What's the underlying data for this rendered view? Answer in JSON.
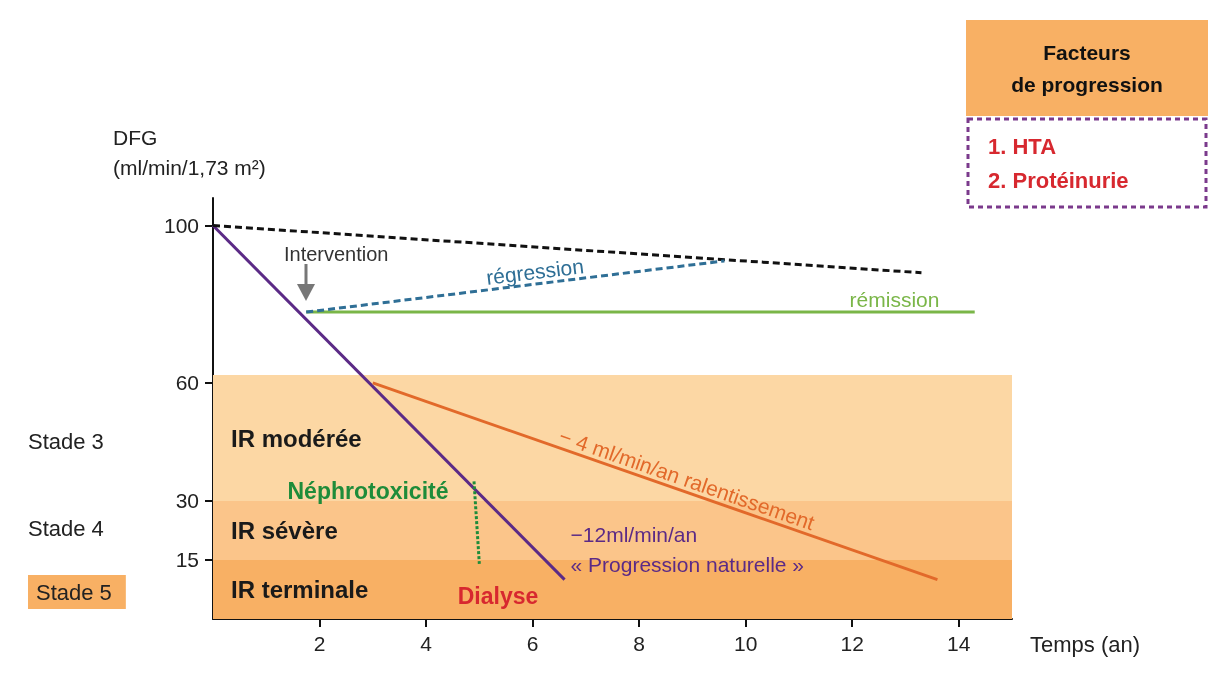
{
  "chart_data": {
    "type": "line",
    "xlabel": "Temps (an)",
    "ylabel": "DFG\n(ml/min/1,73 m²)",
    "xlim": [
      0,
      15
    ],
    "xticks": [
      2,
      4,
      6,
      8,
      10,
      12,
      14
    ],
    "ylim": [
      0,
      107
    ],
    "yticks": [
      15,
      30,
      60,
      100
    ],
    "grid": false,
    "marker": "none",
    "series": [
      {
        "x": [
          0,
          13.3
        ],
        "values": [
          100,
          88
        ],
        "color": "#111111",
        "line_style": "dashed"
      },
      {
        "name": "régression",
        "x": [
          1.75,
          9.6
        ],
        "values": [
          78,
          91
        ],
        "color": "#2f6f96",
        "line_style": "dashed"
      },
      {
        "name": "rémission",
        "x": [
          1.75,
          14.3
        ],
        "values": [
          78,
          78
        ],
        "color": "#7ab648",
        "line_style": "solid"
      },
      {
        "name": "−12ml/min/an\n« Progression naturelle »",
        "x": [
          0,
          6.6
        ],
        "values": [
          100,
          10
        ],
        "color": "#5b2a86",
        "line_style": "solid"
      },
      {
        "name": "− 4 ml/min/an ralentissement",
        "x": [
          3,
          13.6
        ],
        "values": [
          60,
          10
        ],
        "color": "#e2692a",
        "line_style": "solid"
      },
      {
        "x": [
          4.9,
          5.0
        ],
        "values": [
          35,
          14
        ],
        "color": "#1e8c3a",
        "line_style": "dotted"
      }
    ],
    "bands": [
      {
        "axis": "y",
        "from": 30,
        "to": 62,
        "label": "IR modérée",
        "color": "#fcd7a4"
      },
      {
        "axis": "y",
        "from": 15,
        "to": 30,
        "label": "IR sévère",
        "color": "#fbc58a"
      },
      {
        "axis": "y",
        "from": 0,
        "to": 15,
        "label": "IR terminale",
        "color": "#f8b064"
      }
    ],
    "annotations": [
      {
        "text": "Intervention",
        "x": 1.75,
        "y": 78
      },
      "Néphrotoxicité",
      "Dialyse",
      "Stade 3",
      "Stade 4",
      "Stade 5",
      "Facteurs\nde progression",
      "1. HTA",
      "2. Protéinurie"
    ]
  }
}
